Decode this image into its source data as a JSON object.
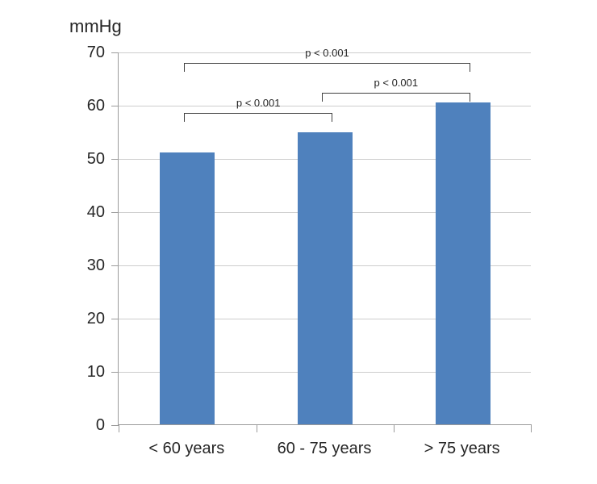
{
  "chart_data": {
    "type": "bar",
    "title": "",
    "xlabel": "",
    "ylabel": "mmHg",
    "categories": [
      "< 60 years",
      "60 - 75 years",
      "> 75 years"
    ],
    "values": [
      51,
      54.8,
      60.5
    ],
    "ylim": [
      0,
      70
    ],
    "yticks": [
      0,
      10,
      20,
      30,
      40,
      50,
      60,
      70
    ],
    "grid": true,
    "legend": "none",
    "bar_color": "#4F81BD",
    "annotations": [
      {
        "label": "p < 0.001",
        "from": 0,
        "to": 2,
        "level": 68.0
      },
      {
        "label": "p < 0.001",
        "from": 1,
        "to": 2,
        "level": 62.5
      },
      {
        "label": "p < 0.001",
        "from": 0,
        "to": 1,
        "level": 58.6
      }
    ]
  },
  "colors": {
    "bar": "#4F81BD",
    "gridline": "#CDCDCD",
    "axis": "#9B9B9B",
    "text": "#262626",
    "bracket": "#404040"
  }
}
